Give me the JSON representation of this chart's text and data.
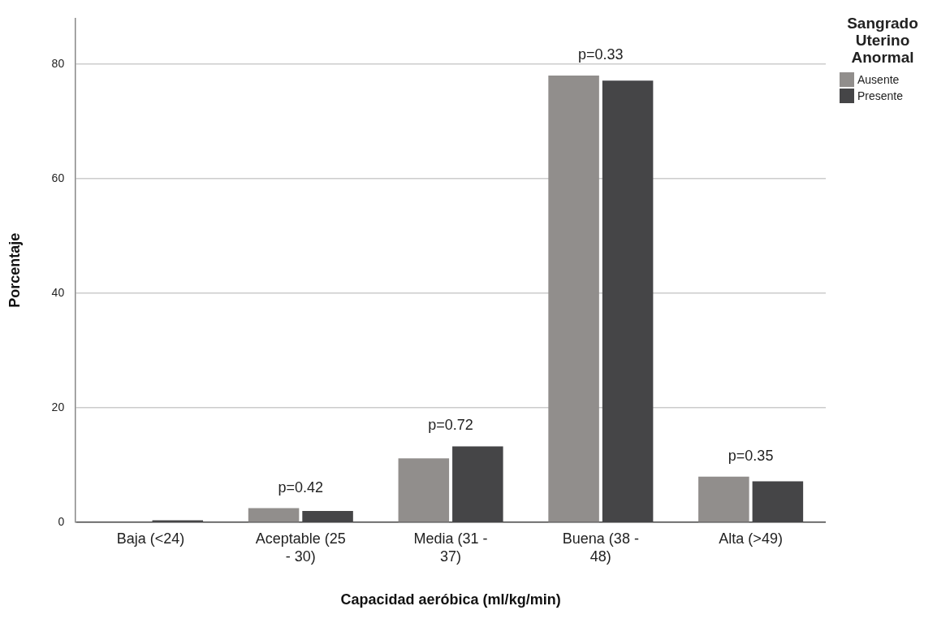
{
  "chart_data": {
    "type": "bar",
    "xlabel": "Capacidad aeróbica (ml/kg/min)",
    "ylabel": "Porcentaje",
    "legend_title": "Sangrado Uterino Anormal",
    "categories": [
      "Baja (<24)",
      "Aceptable (25 - 30)",
      "Media (31 - 37)",
      "Buena (38 - 48)",
      "Alta (>49)"
    ],
    "series": [
      {
        "name": "Ausente",
        "color": "#918e8c",
        "values": [
          0.1,
          2.5,
          11.2,
          78.0,
          8.0
        ]
      },
      {
        "name": "Presente",
        "color": "#454547",
        "values": [
          0.4,
          2.0,
          13.3,
          77.1,
          7.2
        ]
      }
    ],
    "ylim": [
      0,
      88
    ],
    "yticks": [
      0,
      20,
      40,
      60,
      80
    ],
    "grid": "y",
    "legend": "top right",
    "annotations": [
      "p=0.42",
      "p=0.72",
      "p=0.33",
      "p=0.35"
    ]
  }
}
